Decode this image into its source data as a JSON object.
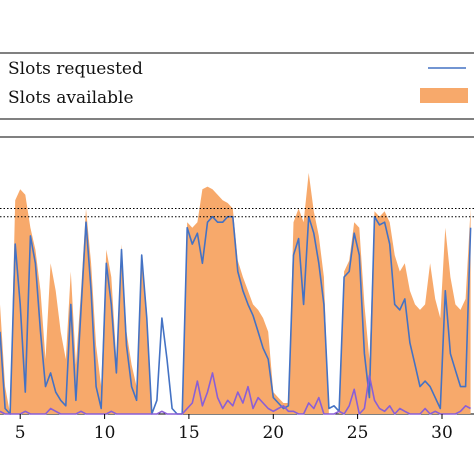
{
  "chart_data": {
    "type": "area",
    "title": "",
    "xlabel": "",
    "ylabel": "",
    "xlim": [
      3.8,
      31.9
    ],
    "ylim": [
      0,
      100
    ],
    "x_ticks": [
      5,
      10,
      15,
      20,
      25,
      30
    ],
    "grid": false,
    "legend_position": "top",
    "reference_lines": [
      75,
      72
    ],
    "series": [
      {
        "name": "Slots requested",
        "kind": "line",
        "color": "#4472c4",
        "x": [
          3.8,
          4.1,
          4.4,
          4.7,
          5.0,
          5.3,
          5.6,
          5.9,
          6.2,
          6.5,
          6.8,
          7.1,
          7.4,
          7.7,
          8.0,
          8.3,
          8.6,
          8.9,
          9.2,
          9.5,
          9.8,
          10.1,
          10.4,
          10.7,
          11.0,
          11.3,
          11.6,
          11.9,
          12.2,
          12.5,
          12.8,
          13.1,
          13.4,
          13.7,
          14.0,
          14.3,
          14.6,
          14.9,
          15.2,
          15.5,
          15.8,
          16.1,
          16.4,
          16.7,
          17.0,
          17.3,
          17.6,
          17.9,
          18.2,
          18.5,
          18.8,
          19.1,
          19.4,
          19.7,
          20.0,
          20.3,
          20.6,
          20.9,
          21.2,
          21.5,
          21.8,
          22.1,
          22.4,
          22.7,
          23.0,
          23.3,
          23.6,
          23.9,
          24.2,
          24.5,
          24.8,
          25.1,
          25.4,
          25.7,
          26.0,
          26.3,
          26.6,
          26.9,
          27.2,
          27.5,
          27.8,
          28.1,
          28.4,
          28.7,
          29.0,
          29.3,
          29.6,
          29.9,
          30.2,
          30.5,
          30.8,
          31.1,
          31.4,
          31.7
        ],
        "values": [
          30,
          2,
          0,
          62,
          40,
          8,
          65,
          55,
          30,
          10,
          15,
          8,
          5,
          3,
          40,
          5,
          38,
          70,
          45,
          10,
          2,
          55,
          40,
          15,
          60,
          25,
          10,
          5,
          58,
          35,
          0,
          5,
          35,
          20,
          2,
          0,
          0,
          68,
          62,
          66,
          55,
          70,
          72,
          70,
          70,
          72,
          72,
          52,
          45,
          40,
          36,
          30,
          24,
          20,
          6,
          4,
          2,
          3,
          58,
          64,
          40,
          72,
          66,
          55,
          40,
          2,
          3,
          1,
          50,
          52,
          66,
          58,
          22,
          6,
          72,
          69,
          70,
          62,
          40,
          38,
          42,
          26,
          18,
          10,
          12,
          10,
          6,
          2,
          45,
          22,
          16,
          10,
          10,
          68
        ]
      },
      {
        "name": "",
        "kind": "line",
        "color": "#8a5fd6",
        "x": [
          3.8,
          4.1,
          4.4,
          4.7,
          5.0,
          5.3,
          5.6,
          5.9,
          6.2,
          6.5,
          6.8,
          7.1,
          7.4,
          7.7,
          8.0,
          8.3,
          8.6,
          8.9,
          9.2,
          9.5,
          9.8,
          10.1,
          10.4,
          10.7,
          11.0,
          11.3,
          11.6,
          11.9,
          12.2,
          12.5,
          12.8,
          13.1,
          13.4,
          13.7,
          14.0,
          14.3,
          14.6,
          14.9,
          15.2,
          15.5,
          15.8,
          16.1,
          16.4,
          16.7,
          17.0,
          17.3,
          17.6,
          17.9,
          18.2,
          18.5,
          18.8,
          19.1,
          19.4,
          19.7,
          20.0,
          20.3,
          20.6,
          20.9,
          21.2,
          21.5,
          21.8,
          22.1,
          22.4,
          22.7,
          23.0,
          23.3,
          23.6,
          23.9,
          24.2,
          24.5,
          24.8,
          25.1,
          25.4,
          25.7,
          26.0,
          26.3,
          26.6,
          26.9,
          27.2,
          27.5,
          27.8,
          28.1,
          28.4,
          28.7,
          29.0,
          29.3,
          29.6,
          29.9,
          30.2,
          30.5,
          30.8,
          31.1,
          31.4,
          31.7
        ],
        "values": [
          1,
          0,
          0,
          0,
          0,
          1,
          0,
          0,
          0,
          0,
          2,
          1,
          0,
          0,
          0,
          0,
          1,
          0,
          0,
          0,
          0,
          0,
          1,
          0,
          0,
          0,
          0,
          0,
          0,
          0,
          0,
          0,
          1,
          0,
          0,
          0,
          0,
          2,
          4,
          12,
          3,
          8,
          15,
          6,
          2,
          5,
          3,
          8,
          4,
          10,
          2,
          6,
          4,
          2,
          1,
          2,
          3,
          1,
          1,
          0,
          0,
          4,
          2,
          6,
          0,
          0,
          0,
          1,
          0,
          3,
          9,
          0,
          2,
          14,
          5,
          2,
          1,
          3,
          0,
          2,
          1,
          0,
          0,
          0,
          2,
          0,
          1,
          0,
          0,
          0,
          0,
          1,
          3,
          2
        ]
      },
      {
        "name": "Slots available",
        "kind": "area",
        "color": "#f7a96b",
        "x": [
          3.8,
          4.1,
          4.4,
          4.7,
          5.0,
          5.3,
          5.6,
          5.9,
          6.2,
          6.5,
          6.8,
          7.1,
          7.4,
          7.7,
          8.0,
          8.3,
          8.6,
          8.9,
          9.2,
          9.5,
          9.8,
          10.1,
          10.4,
          10.7,
          11.0,
          11.3,
          11.6,
          11.9,
          12.2,
          12.5,
          12.8,
          13.1,
          13.4,
          13.7,
          14.0,
          14.3,
          14.6,
          14.9,
          15.2,
          15.5,
          15.8,
          16.1,
          16.4,
          16.7,
          17.0,
          17.3,
          17.6,
          17.9,
          18.2,
          18.5,
          18.8,
          19.1,
          19.4,
          19.7,
          20.0,
          20.3,
          20.6,
          20.9,
          21.2,
          21.5,
          21.8,
          22.1,
          22.4,
          22.7,
          23.0,
          23.3,
          23.6,
          23.9,
          24.2,
          24.5,
          24.8,
          25.1,
          25.4,
          25.7,
          26.0,
          26.3,
          26.6,
          26.9,
          27.2,
          27.5,
          27.8,
          28.1,
          28.4,
          28.7,
          29.0,
          29.3,
          29.6,
          29.9,
          30.2,
          30.5,
          30.8,
          31.1,
          31.4,
          31.7
        ],
        "values": [
          40,
          10,
          0,
          78,
          82,
          80,
          68,
          60,
          45,
          20,
          55,
          45,
          30,
          20,
          52,
          18,
          45,
          75,
          55,
          25,
          10,
          60,
          50,
          20,
          62,
          30,
          18,
          10,
          58,
          38,
          0,
          0,
          0,
          0,
          0,
          0,
          0,
          70,
          68,
          70,
          82,
          83,
          82,
          80,
          78,
          77,
          75,
          56,
          50,
          45,
          40,
          38,
          35,
          30,
          8,
          6,
          4,
          4,
          70,
          75,
          70,
          88,
          74,
          65,
          50,
          0,
          0,
          0,
          52,
          56,
          70,
          68,
          40,
          20,
          74,
          72,
          74,
          70,
          58,
          52,
          55,
          45,
          40,
          38,
          40,
          55,
          42,
          35,
          68,
          50,
          40,
          38,
          42,
          75
        ]
      }
    ]
  }
}
